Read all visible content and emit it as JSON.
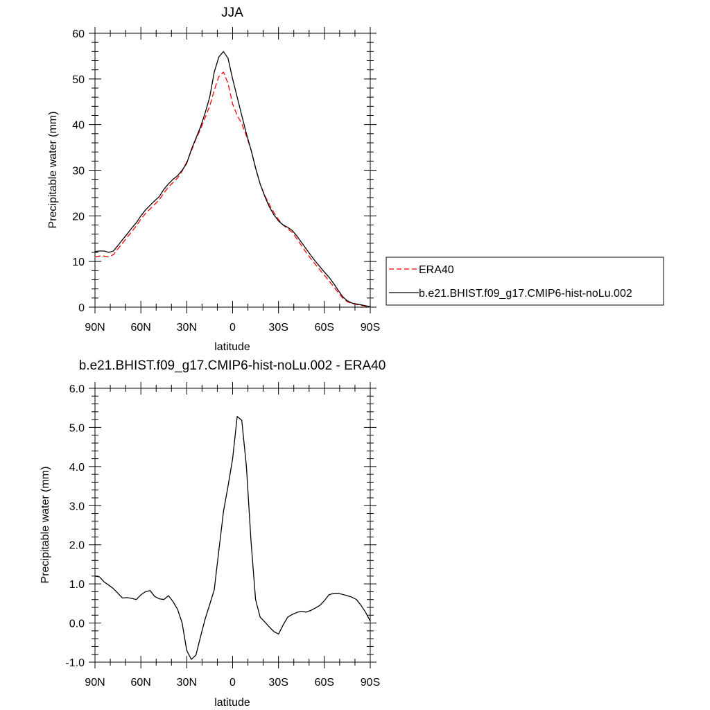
{
  "chart_data": [
    {
      "type": "line",
      "title": "JJA",
      "xlabel": "latitude",
      "ylabel": "Precipitable water (mm)",
      "xlim": [
        90,
        -90
      ],
      "ylim": [
        0,
        60
      ],
      "xticks": [
        {
          "value": 90,
          "label": "90N"
        },
        {
          "value": 60,
          "label": "60N"
        },
        {
          "value": 30,
          "label": "30N"
        },
        {
          "value": 0,
          "label": "0"
        },
        {
          "value": -30,
          "label": "30S"
        },
        {
          "value": -60,
          "label": "60S"
        },
        {
          "value": -90,
          "label": "90S"
        }
      ],
      "yticks": [
        {
          "value": 0,
          "label": "0"
        },
        {
          "value": 10,
          "label": "10"
        },
        {
          "value": 20,
          "label": "20"
        },
        {
          "value": 30,
          "label": "30"
        },
        {
          "value": 40,
          "label": "40"
        },
        {
          "value": 50,
          "label": "50"
        },
        {
          "value": 60,
          "label": "60"
        }
      ],
      "legend_position": "right",
      "series": [
        {
          "name": "ERA40",
          "color": "#ff0000",
          "dash": "dashed",
          "points": [
            [
              90,
              11.0
            ],
            [
              87,
              11.2
            ],
            [
              84,
              11.2
            ],
            [
              81,
              11.0
            ],
            [
              78,
              11.5
            ],
            [
              75,
              12.8
            ],
            [
              72,
              14.0
            ],
            [
              69,
              15.3
            ],
            [
              66,
              16.5
            ],
            [
              63,
              17.8
            ],
            [
              60,
              19.3
            ],
            [
              57,
              20.5
            ],
            [
              54,
              21.5
            ],
            [
              51,
              22.5
            ],
            [
              48,
              23.5
            ],
            [
              45,
              25.0
            ],
            [
              42,
              26.3
            ],
            [
              39,
              27.3
            ],
            [
              36,
              28.3
            ],
            [
              33,
              29.8
            ],
            [
              30,
              31.8
            ],
            [
              27,
              34.2
            ],
            [
              24,
              36.8
            ],
            [
              21,
              39.0
            ],
            [
              18,
              41.5
            ],
            [
              15,
              44.0
            ],
            [
              12,
              47.5
            ],
            [
              9,
              50.5
            ],
            [
              6,
              51.5
            ],
            [
              3,
              49.0
            ],
            [
              0,
              44.5
            ],
            [
              -3,
              42.0
            ],
            [
              -6,
              40.2
            ],
            [
              -9,
              37.5
            ],
            [
              -12,
              34.5
            ],
            [
              -15,
              30.5
            ],
            [
              -18,
              27.0
            ],
            [
              -21,
              24.5
            ],
            [
              -24,
              22.5
            ],
            [
              -27,
              20.7
            ],
            [
              -30,
              19.2
            ],
            [
              -33,
              18.0
            ],
            [
              -36,
              17.2
            ],
            [
              -39,
              16.4
            ],
            [
              -42,
              15.0
            ],
            [
              -45,
              13.5
            ],
            [
              -48,
              12.0
            ],
            [
              -51,
              10.7
            ],
            [
              -54,
              9.4
            ],
            [
              -57,
              8.2
            ],
            [
              -60,
              7.0
            ],
            [
              -63,
              5.8
            ],
            [
              -66,
              4.5
            ],
            [
              -69,
              3.2
            ],
            [
              -72,
              2.0
            ],
            [
              -75,
              1.2
            ],
            [
              -78,
              0.8
            ],
            [
              -81,
              0.6
            ],
            [
              -84,
              0.4
            ],
            [
              -87,
              0.2
            ],
            [
              -90,
              0.0
            ]
          ]
        },
        {
          "name": "b.e21.BHIST.f09_g17.CMIP6-hist-noLu.002",
          "color": "#000000",
          "dash": "solid",
          "points": [
            [
              90,
              12.2
            ],
            [
              87,
              12.3
            ],
            [
              84,
              12.3
            ],
            [
              81,
              12.0
            ],
            [
              78,
              12.3
            ],
            [
              75,
              13.5
            ],
            [
              72,
              14.8
            ],
            [
              69,
              16.0
            ],
            [
              66,
              17.3
            ],
            [
              63,
              18.5
            ],
            [
              60,
              20.0
            ],
            [
              57,
              21.3
            ],
            [
              54,
              22.3
            ],
            [
              51,
              23.3
            ],
            [
              48,
              24.2
            ],
            [
              45,
              25.8
            ],
            [
              42,
              27.0
            ],
            [
              39,
              28.0
            ],
            [
              36,
              28.8
            ],
            [
              33,
              30.0
            ],
            [
              30,
              31.5
            ],
            [
              27,
              34.5
            ],
            [
              24,
              37.0
            ],
            [
              21,
              39.5
            ],
            [
              18,
              42.5
            ],
            [
              15,
              46.0
            ],
            [
              12,
              51.5
            ],
            [
              9,
              54.8
            ],
            [
              6,
              56.0
            ],
            [
              3,
              54.5
            ],
            [
              0,
              50.0
            ],
            [
              -3,
              46.0
            ],
            [
              -6,
              42.0
            ],
            [
              -9,
              38.0
            ],
            [
              -12,
              34.5
            ],
            [
              -15,
              30.5
            ],
            [
              -18,
              27.0
            ],
            [
              -21,
              24.3
            ],
            [
              -24,
              22.0
            ],
            [
              -27,
              20.2
            ],
            [
              -30,
              18.9
            ],
            [
              -33,
              18.0
            ],
            [
              -36,
              17.5
            ],
            [
              -39,
              16.8
            ],
            [
              -42,
              15.6
            ],
            [
              -45,
              14.2
            ],
            [
              -48,
              12.8
            ],
            [
              -51,
              11.4
            ],
            [
              -54,
              10.1
            ],
            [
              -57,
              8.9
            ],
            [
              -60,
              7.7
            ],
            [
              -63,
              6.6
            ],
            [
              -66,
              5.2
            ],
            [
              -69,
              3.7
            ],
            [
              -72,
              2.3
            ],
            [
              -75,
              1.4
            ],
            [
              -78,
              0.9
            ],
            [
              -81,
              0.7
            ],
            [
              -84,
              0.5
            ],
            [
              -87,
              0.3
            ],
            [
              -90,
              0.1
            ]
          ]
        }
      ]
    },
    {
      "type": "line",
      "title": "b.e21.BHIST.f09_g17.CMIP6-hist-noLu.002 - ERA40",
      "xlabel": "latitude",
      "ylabel": "Precipitable water (mm)",
      "xlim": [
        90,
        -90
      ],
      "ylim": [
        -1.0,
        6.0
      ],
      "xticks": [
        {
          "value": 90,
          "label": "90N"
        },
        {
          "value": 60,
          "label": "60N"
        },
        {
          "value": 30,
          "label": "30N"
        },
        {
          "value": 0,
          "label": "0"
        },
        {
          "value": -30,
          "label": "30S"
        },
        {
          "value": -60,
          "label": "60S"
        },
        {
          "value": -90,
          "label": "90S"
        }
      ],
      "yticks": [
        {
          "value": -1.0,
          "label": "-1.0"
        },
        {
          "value": 0.0,
          "label": "0.0"
        },
        {
          "value": 1.0,
          "label": "1.0"
        },
        {
          "value": 2.0,
          "label": "2.0"
        },
        {
          "value": 3.0,
          "label": "3.0"
        },
        {
          "value": 4.0,
          "label": "4.0"
        },
        {
          "value": 5.0,
          "label": "5.0"
        },
        {
          "value": 6.0,
          "label": "6.0"
        }
      ],
      "series": [
        {
          "name": "",
          "color": "#000000",
          "dash": "solid",
          "points": [
            [
              90,
              1.2
            ],
            [
              87,
              1.18
            ],
            [
              84,
              1.05
            ],
            [
              81,
              0.97
            ],
            [
              78,
              0.88
            ],
            [
              75,
              0.76
            ],
            [
              72,
              0.64
            ],
            [
              69,
              0.65
            ],
            [
              66,
              0.63
            ],
            [
              63,
              0.6
            ],
            [
              60,
              0.72
            ],
            [
              57,
              0.8
            ],
            [
              54,
              0.83
            ],
            [
              51,
              0.68
            ],
            [
              48,
              0.62
            ],
            [
              45,
              0.6
            ],
            [
              42,
              0.7
            ],
            [
              39,
              0.55
            ],
            [
              36,
              0.35
            ],
            [
              33,
              0.0
            ],
            [
              30,
              -0.7
            ],
            [
              27,
              -0.93
            ],
            [
              24,
              -0.82
            ],
            [
              21,
              -0.35
            ],
            [
              18,
              0.1
            ],
            [
              15,
              0.47
            ],
            [
              12,
              0.85
            ],
            [
              9,
              1.85
            ],
            [
              6,
              2.85
            ],
            [
              3,
              3.5
            ],
            [
              0,
              4.2
            ],
            [
              -3,
              5.28
            ],
            [
              -6,
              5.18
            ],
            [
              -9,
              4.0
            ],
            [
              -12,
              2.1
            ],
            [
              -15,
              0.6
            ],
            [
              -18,
              0.15
            ],
            [
              -21,
              0.03
            ],
            [
              -24,
              -0.1
            ],
            [
              -27,
              -0.22
            ],
            [
              -30,
              -0.28
            ],
            [
              -33,
              -0.05
            ],
            [
              -36,
              0.15
            ],
            [
              -39,
              0.22
            ],
            [
              -42,
              0.27
            ],
            [
              -45,
              0.3
            ],
            [
              -48,
              0.28
            ],
            [
              -51,
              0.32
            ],
            [
              -54,
              0.38
            ],
            [
              -57,
              0.45
            ],
            [
              -60,
              0.57
            ],
            [
              -63,
              0.72
            ],
            [
              -66,
              0.76
            ],
            [
              -69,
              0.76
            ],
            [
              -72,
              0.73
            ],
            [
              -75,
              0.7
            ],
            [
              -78,
              0.66
            ],
            [
              -81,
              0.6
            ],
            [
              -84,
              0.45
            ],
            [
              -87,
              0.27
            ],
            [
              -90,
              0.05
            ]
          ]
        }
      ]
    }
  ]
}
